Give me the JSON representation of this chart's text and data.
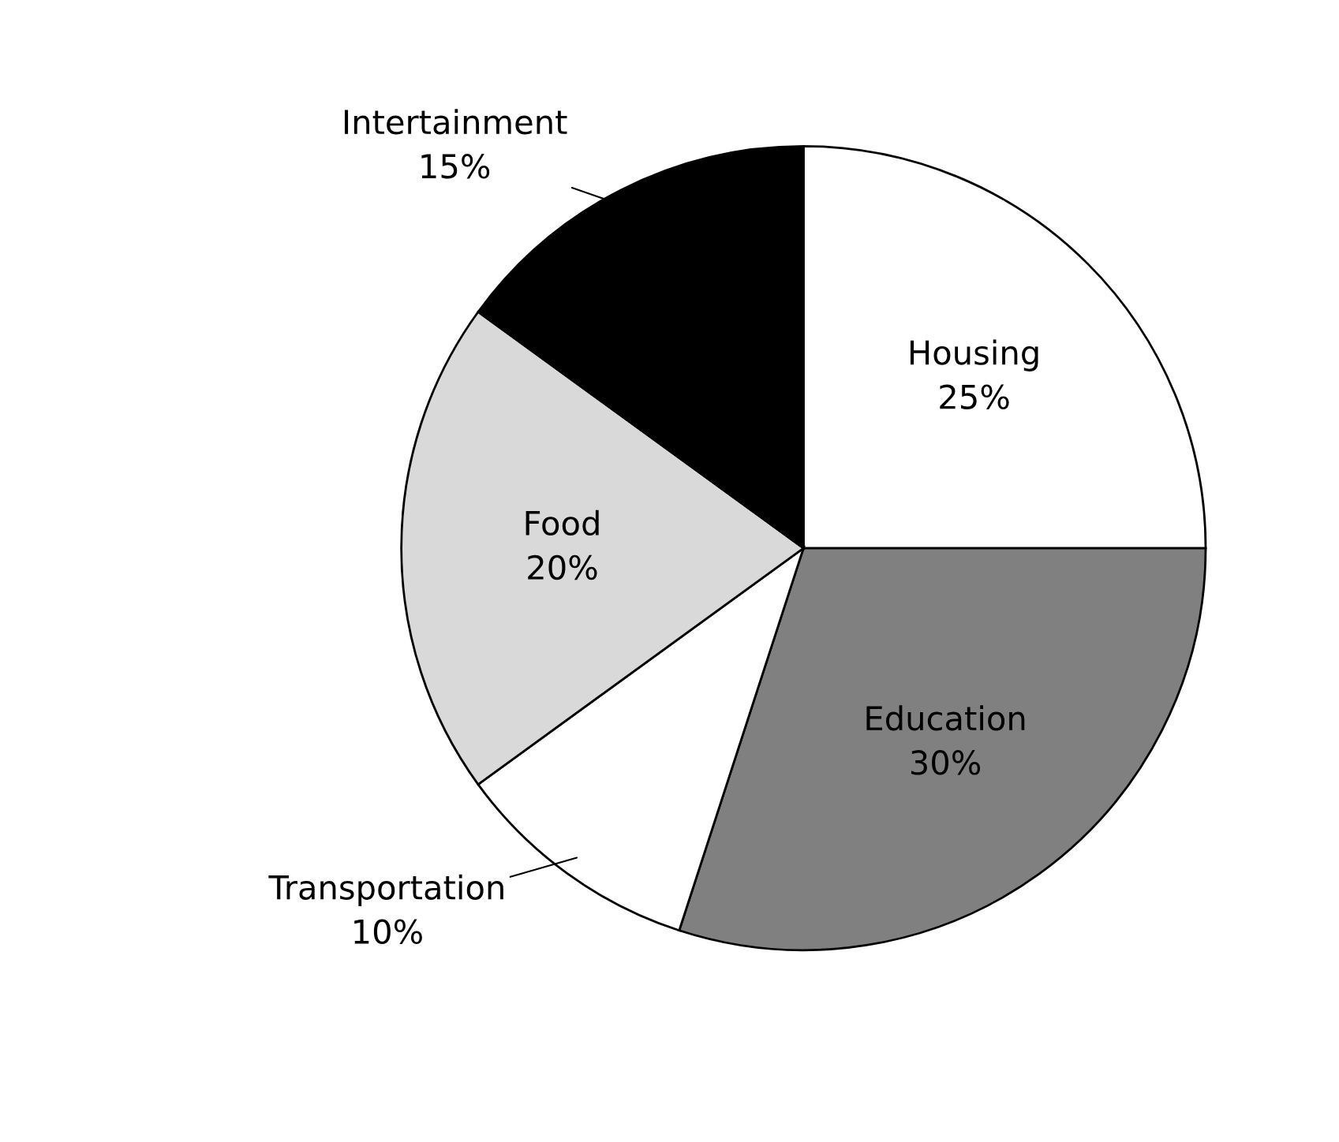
{
  "chart_data": {
    "type": "pie",
    "categories": [
      "Housing",
      "Education",
      "Transportation",
      "Food",
      "Intertainment"
    ],
    "values": [
      25,
      30,
      10,
      20,
      15
    ],
    "value_labels": [
      "25%",
      "30%",
      "10%",
      "20%",
      "15%"
    ],
    "colors": [
      "#ffffff",
      "#808080",
      "#ffffff",
      "#d9d9d9",
      "#000000"
    ],
    "legend": false
  }
}
